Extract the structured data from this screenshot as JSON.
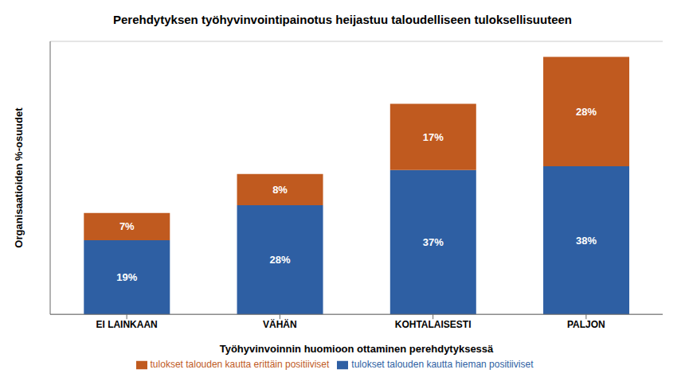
{
  "chart_data": {
    "type": "bar",
    "title": "Perehdytyksen työhyvinvointipainotus heijastuu taloudelliseen tuloksellisuuteen",
    "xlabel": "Työhyvinvoinnin huomioon ottaminen perehdytyksessä",
    "ylabel": "Organisaatioiden %-osuudet",
    "categories": [
      "EI LAINKAAN",
      "VÄHÄN",
      "KOHTALAISESTI",
      "PALJON"
    ],
    "series": [
      {
        "name": "tulokset talouden kautta hieman positiiviset",
        "color": "#2E5FA3",
        "values": [
          19,
          28,
          37,
          38
        ],
        "value_labels": [
          "19%",
          "28%",
          "37%",
          "38%"
        ]
      },
      {
        "name": "tulokset talouden kautta erittäin positiiviset",
        "color": "#C05A1F",
        "values": [
          7,
          8,
          17,
          28
        ],
        "value_labels": [
          "7%",
          "8%",
          "17%",
          "28%"
        ]
      }
    ],
    "stacked": true,
    "data_labels": true,
    "ylim": [
      0,
      70
    ],
    "yticks": [
      0,
      10,
      20,
      30,
      40,
      50,
      60,
      70
    ],
    "grid": true,
    "tick_labels": "x",
    "legend": "bottom"
  }
}
